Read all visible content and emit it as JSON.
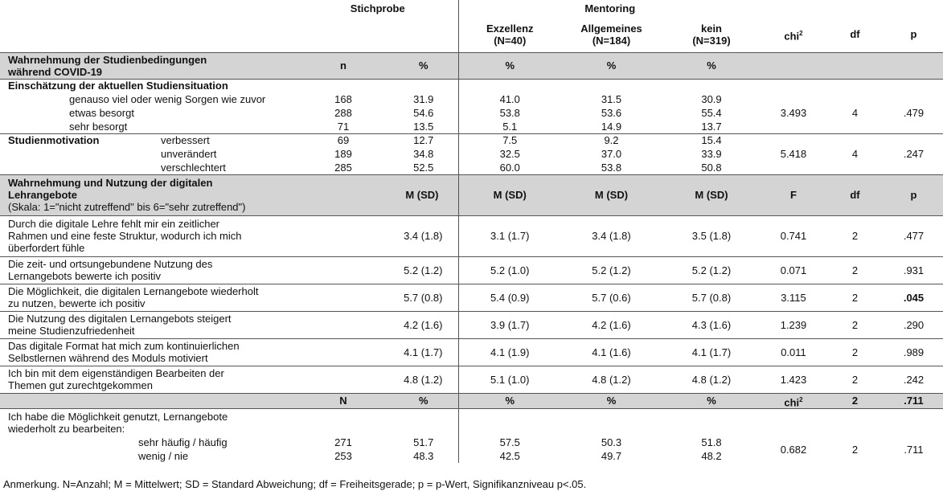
{
  "header": {
    "stichprobe": "Stichprobe",
    "mentoring": "Mentoring",
    "exzellenz": "Exzellenz",
    "exzellenz_n": "(N=40)",
    "allgemeines": "Allgemeines",
    "allgemeines_n": "(N=184)",
    "kein": "kein",
    "kein_n": "(N=319)",
    "chi": "chi²",
    "df": "df",
    "p": "p"
  },
  "section1": {
    "title_1": "Wahrnehmung der Studienbedingungen",
    "title_2": "während COVID-19",
    "n": "n",
    "pct": "%",
    "q1": {
      "title": "Einschätzung der aktuellen Studiensituation",
      "rows": [
        {
          "label": "genauso viel oder wenig Sorgen wie zuvor",
          "n": "168",
          "pct": "31.9",
          "exz": "41.0",
          "allg": "31.5",
          "kein": "30.9"
        },
        {
          "label": "etwas besorgt",
          "n": "288",
          "pct": "54.6",
          "exz": "53.8",
          "allg": "53.6",
          "kein": "55.4"
        },
        {
          "label": "sehr besorgt",
          "n": "71",
          "pct": "13.5",
          "exz": "5.1",
          "allg": "14.9",
          "kein": "13.7"
        }
      ],
      "chi": "3.493",
      "df": "4",
      "p": ".479"
    },
    "q2": {
      "title": "Studienmotivation",
      "rows": [
        {
          "label": "verbessert",
          "n": "69",
          "pct": "12.7",
          "exz": "7.5",
          "allg": "9.2",
          "kein": "15.4"
        },
        {
          "label": "unverändert",
          "n": "189",
          "pct": "34.8",
          "exz": "32.5",
          "allg": "37.0",
          "kein": "33.9"
        },
        {
          "label": "verschlechtert",
          "n": "285",
          "pct": "52.5",
          "exz": "60.0",
          "allg": "53.8",
          "kein": "50.8"
        }
      ],
      "chi": "5.418",
      "df": "4",
      "p": ".247"
    }
  },
  "section2": {
    "title_1": "Wahrnehmung und Nutzung der digitalen",
    "title_2": "Lehrangebote",
    "scale": "(Skala: 1=\"nicht zutreffend\" bis 6=\"sehr zutreffend\")",
    "msd": "M (SD)",
    "f": "F",
    "df": "df",
    "p": "p",
    "items": [
      {
        "l1": "Durch die digitale Lehre fehlt mir ein zeitlicher",
        "l2": "Rahmen und eine feste Struktur, wodurch ich mich",
        "l3": "überfordert fühle",
        "all": "3.4 (1.8)",
        "exz": "3.1 (1.7)",
        "allg": "3.4 (1.8)",
        "kein": "3.5 (1.8)",
        "f": "0.741",
        "df": "2",
        "p": ".477"
      },
      {
        "l1": "Die zeit- und ortsungebundene Nutzung des",
        "l2": "Lernangebots bewerte ich positiv",
        "all": "5.2 (1.2)",
        "exz": "5.2 (1.0)",
        "allg": "5.2 (1.2)",
        "kein": "5.2 (1.2)",
        "f": "0.071",
        "df": "2",
        "p": ".931"
      },
      {
        "l1": "Die Möglichkeit, die digitalen Lernangebote wiederholt",
        "l2": "zu nutzen, bewerte ich positiv",
        "all": "5.7 (0.8)",
        "exz": "5.4 (0.9)",
        "allg": "5.7 (0.6)",
        "kein": "5.7 (0.8)",
        "f": "3.115",
        "df": "2",
        "p": ".045"
      },
      {
        "l1": "Die Nutzung des digitalen Lernangebots steigert",
        "l2": "meine Studienzufriedenheit",
        "all": "4.2 (1.6)",
        "exz": "3.9 (1.7)",
        "allg": "4.2 (1.6)",
        "kein": "4.3 (1.6)",
        "f": "1.239",
        "df": "2",
        "p": ".290"
      },
      {
        "l1": "Das digitale Format hat mich zum kontinuierlichen",
        "l2": "Selbstlernen während des Moduls motiviert",
        "all": "4.1 (1.7)",
        "exz": "4.1 (1.9)",
        "allg": "4.1 (1.6)",
        "kein": "4.1 (1.7)",
        "f": "0.011",
        "df": "2",
        "p": ".989"
      },
      {
        "l1": "Ich bin mit dem eigenständigen Bearbeiten der",
        "l2": "Themen gut zurechtgekommen",
        "all": "4.8 (1.2)",
        "exz": "5.1 (1.0)",
        "allg": "4.8 (1.2)",
        "kein": "4.8 (1.2)",
        "f": "1.423",
        "df": "2",
        "p": ".242"
      }
    ]
  },
  "section3": {
    "n": "N",
    "pct": "%",
    "chi": "0.682",
    "df": "2",
    "p": ".711",
    "q_1": "Ich habe die Möglichkeit genutzt, Lernangebote",
    "q_2": "wiederholt zu bearbeiten:",
    "rows": [
      {
        "label": "sehr häufig / häufig",
        "n": "271",
        "pct": "51.7",
        "exz": "57.5",
        "allg": "50.3",
        "kein": "51.8"
      },
      {
        "label": "wenig / nie",
        "n": "253",
        "pct": "48.3",
        "exz": "42.5",
        "allg": "49.7",
        "kein": "48.2"
      }
    ]
  },
  "note": "Anmerkung. N=Anzahl; M = Mittelwert; SD = Standard Abweichung; df = Freiheitsgerade; p = p-Wert, Signifikanzniveau p<.05."
}
